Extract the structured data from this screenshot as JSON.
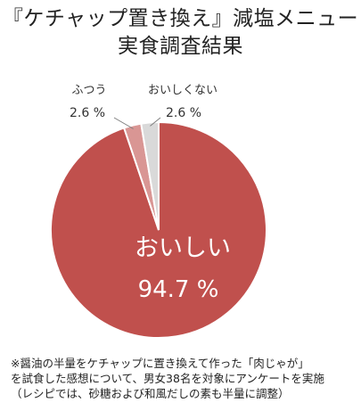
{
  "title_lines": [
    "『ケチャップ置き換え』減塩メニュー",
    "実食調査結果"
  ],
  "chart_data": {
    "type": "pie",
    "title": "『ケチャップ置き換え』減塩メニュー 実食調査結果",
    "slices": [
      {
        "label": "おいしい",
        "value_label": "94.7 %",
        "value": 94.7,
        "color": "#c0504d"
      },
      {
        "label": "ふつう",
        "value_label": "2.6 %",
        "value": 2.6,
        "color": "#d99694"
      },
      {
        "label": "おいしくない",
        "value_label": "2.6 %",
        "value": 2.6,
        "color": "#d9d9d9"
      }
    ],
    "start": "12 o'clock, clockwise",
    "legend": "none"
  },
  "notes": [
    "※醤油の半量をケチャップに置き換えて作った「肉じゃが」",
    "を試食した感想について、男女38名を対象にアンケートを実施",
    "（レシピでは、砂糖および和風だしの素も半量に調整）"
  ]
}
